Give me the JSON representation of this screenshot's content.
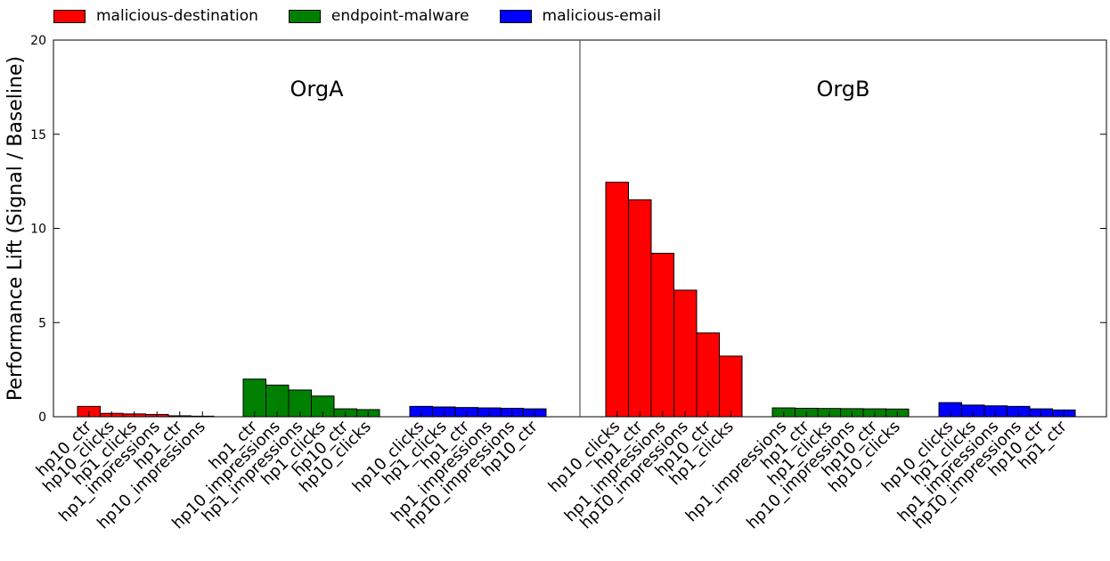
{
  "chart_data": {
    "type": "bar",
    "ylabel": "Performance Lift (Signal / Baseline)",
    "ylim": [
      0,
      20
    ],
    "yticks": [
      0,
      5,
      10,
      15,
      20
    ],
    "grid": false,
    "legend_position": "top",
    "legend": [
      {
        "name": "malicious-destination",
        "color": "#ff0000"
      },
      {
        "name": "endpoint-malware",
        "color": "#008000"
      },
      {
        "name": "malicious-email",
        "color": "#0000ff"
      }
    ],
    "panels": [
      {
        "title": "OrgA",
        "groups": [
          {
            "series": "malicious-destination",
            "color": "#ff0000",
            "categories": [
              "hp10_ctr",
              "hp10_clicks",
              "hp1_clicks",
              "hp1_impressions",
              "hp1_ctr",
              "hp10_impressions"
            ],
            "values": [
              0.55,
              0.18,
              0.15,
              0.12,
              0.05,
              0.03
            ]
          },
          {
            "series": "endpoint-malware",
            "color": "#008000",
            "categories": [
              "hp1_ctr",
              "hp10_impressions",
              "hp1_impressions",
              "hp1_clicks",
              "hp10_ctr",
              "hp10_clicks"
            ],
            "values": [
              2.0,
              1.68,
              1.42,
              1.1,
              0.42,
              0.38
            ]
          },
          {
            "series": "malicious-email",
            "color": "#0000ff",
            "categories": [
              "hp10_clicks",
              "hp1_clicks",
              "hp1_ctr",
              "hp1_impressions",
              "hp10_impressions",
              "hp10_ctr"
            ],
            "values": [
              0.55,
              0.52,
              0.49,
              0.47,
              0.45,
              0.42
            ]
          }
        ]
      },
      {
        "title": "OrgB",
        "groups": [
          {
            "series": "malicious-destination",
            "color": "#ff0000",
            "categories": [
              "hp10_clicks",
              "hp1_ctr",
              "hp1_impressions",
              "hp10_impressions",
              "hp10_ctr",
              "hp1_clicks"
            ],
            "values": [
              12.45,
              11.52,
              8.68,
              6.72,
              4.45,
              3.22
            ]
          },
          {
            "series": "endpoint-malware",
            "color": "#008000",
            "categories": [
              "hp1_impressions",
              "hp1_ctr",
              "hp1_clicks",
              "hp10_impressions",
              "hp10_ctr",
              "hp10_clicks"
            ],
            "values": [
              0.47,
              0.45,
              0.44,
              0.43,
              0.42,
              0.41
            ]
          },
          {
            "series": "malicious-email",
            "color": "#0000ff",
            "categories": [
              "hp10_clicks",
              "hp1_clicks",
              "hp1_impressions",
              "hp10_impressions",
              "hp10_ctr",
              "hp1_ctr"
            ],
            "values": [
              0.75,
              0.62,
              0.58,
              0.55,
              0.42,
              0.36
            ]
          }
        ]
      }
    ]
  }
}
